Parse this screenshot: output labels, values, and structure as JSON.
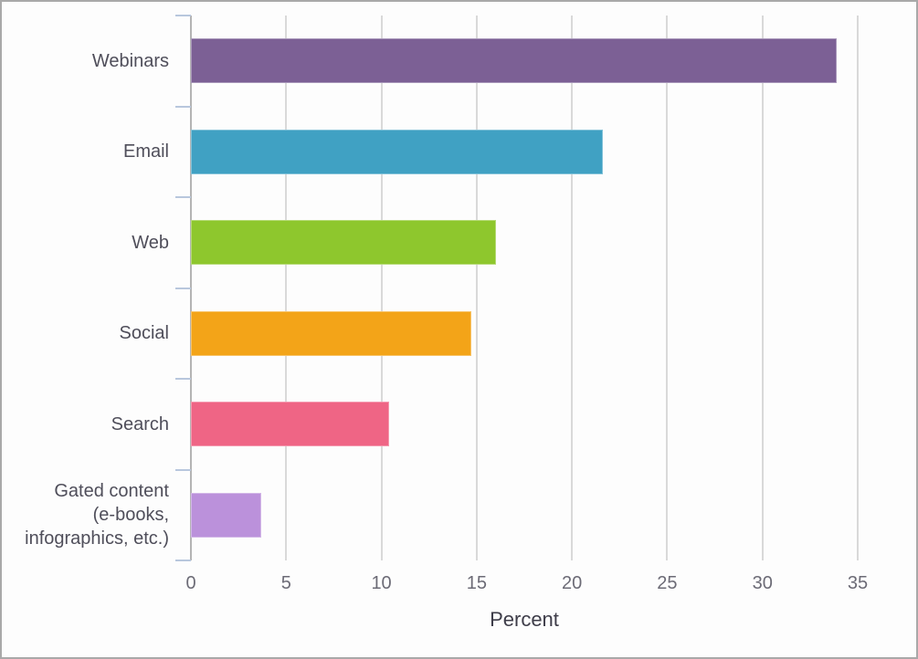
{
  "chart_data": {
    "type": "bar",
    "orientation": "horizontal",
    "title": "",
    "xlabel": "Percent",
    "ylabel": "",
    "categories": [
      "Webinars",
      "Email",
      "Web",
      "Social",
      "Search",
      "Gated content\n(e-books,\ninfographics, etc.)"
    ],
    "values": [
      33.9,
      21.6,
      16,
      14.7,
      10.4,
      3.7
    ],
    "bar_colors": [
      "#7c6095",
      "#40a1c3",
      "#8ec72d",
      "#f3a418",
      "#ef6585",
      "#bb91db"
    ],
    "x_ticks": [
      0,
      5,
      10,
      15,
      20,
      25,
      30,
      35
    ],
    "xlim": [
      0,
      35
    ],
    "grid": "vertical-only",
    "legend": "none"
  },
  "colors": {
    "background": "#fdfdfd",
    "frame_border": "#a9a9a9",
    "axis_line": "#b4b4b4",
    "gridline": "#d9d9d9",
    "category_boundary_tick": "#b8c7dd",
    "category_label_text": "#4f4e5a",
    "tick_label_text": "#6c6b76",
    "axis_title_text": "#3e3d49"
  }
}
